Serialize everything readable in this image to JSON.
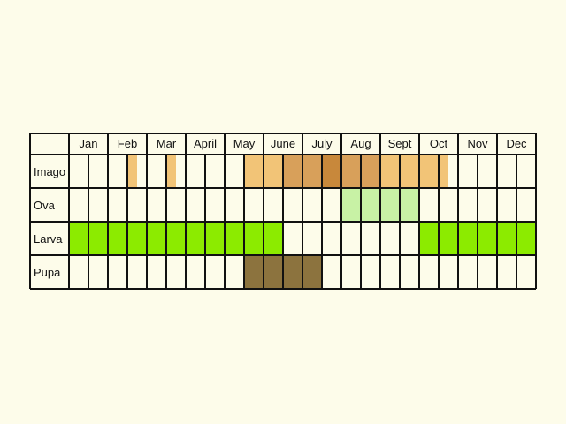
{
  "chart_data": {
    "type": "heatmap",
    "title": "",
    "xlabel": "",
    "ylabel": "",
    "months": [
      "Jan",
      "Feb",
      "Mar",
      "April",
      "May",
      "June",
      "July",
      "Aug",
      "Sept",
      "Oct",
      "Nov",
      "Dec"
    ],
    "periods_per_month": 2,
    "rows": [
      {
        "label": "Imago",
        "cells": [
          {
            "period": 3,
            "color": "#f2c477",
            "width": 0.5
          },
          {
            "period": 5,
            "color": "#f2c477",
            "width": 0.5
          },
          {
            "period": 9,
            "color": "#f2c477",
            "width": 1
          },
          {
            "period": 10,
            "color": "#f2c477",
            "width": 1
          },
          {
            "period": 11,
            "color": "#d8a05a",
            "width": 1
          },
          {
            "period": 12,
            "color": "#d8a05a",
            "width": 1
          },
          {
            "period": 13,
            "color": "#c8883b",
            "width": 1
          },
          {
            "period": 14,
            "color": "#d8a05a",
            "width": 1
          },
          {
            "period": 15,
            "color": "#d8a05a",
            "width": 1
          },
          {
            "period": 16,
            "color": "#f2c477",
            "width": 1
          },
          {
            "period": 17,
            "color": "#f2c477",
            "width": 1
          },
          {
            "period": 18,
            "color": "#f2c477",
            "width": 1
          },
          {
            "period": 19,
            "color": "#f2c477",
            "width": 0.5
          }
        ]
      },
      {
        "label": "Ova",
        "cells": [
          {
            "period": 14,
            "color": "#c8f2a5",
            "width": 1
          },
          {
            "period": 15,
            "color": "#c8f2a5",
            "width": 1
          },
          {
            "period": 16,
            "color": "#c8f2a5",
            "width": 1
          },
          {
            "period": 17,
            "color": "#c8f2a5",
            "width": 1
          }
        ]
      },
      {
        "label": "Larva",
        "cells": [
          {
            "period": 0,
            "color": "#8ceb00",
            "width": 1
          },
          {
            "period": 1,
            "color": "#8ceb00",
            "width": 1
          },
          {
            "period": 2,
            "color": "#8ceb00",
            "width": 1
          },
          {
            "period": 3,
            "color": "#8ceb00",
            "width": 1
          },
          {
            "period": 4,
            "color": "#8ceb00",
            "width": 1
          },
          {
            "period": 5,
            "color": "#8ceb00",
            "width": 1
          },
          {
            "period": 6,
            "color": "#8ceb00",
            "width": 1
          },
          {
            "period": 7,
            "color": "#8ceb00",
            "width": 1
          },
          {
            "period": 8,
            "color": "#8ceb00",
            "width": 1
          },
          {
            "period": 9,
            "color": "#8ceb00",
            "width": 1
          },
          {
            "period": 10,
            "color": "#8ceb00",
            "width": 1
          },
          {
            "period": 18,
            "color": "#8ceb00",
            "width": 1
          },
          {
            "period": 19,
            "color": "#8ceb00",
            "width": 1
          },
          {
            "period": 20,
            "color": "#8ceb00",
            "width": 1
          },
          {
            "period": 21,
            "color": "#8ceb00",
            "width": 1
          },
          {
            "period": 22,
            "color": "#8ceb00",
            "width": 1
          },
          {
            "period": 23,
            "color": "#8ceb00",
            "width": 1
          }
        ]
      },
      {
        "label": "Pupa",
        "cells": [
          {
            "period": 9,
            "color": "#8c733e",
            "width": 1
          },
          {
            "period": 10,
            "color": "#8c733e",
            "width": 1
          },
          {
            "period": 11,
            "color": "#8c733e",
            "width": 1
          },
          {
            "period": 12,
            "color": "#8c733e",
            "width": 1
          }
        ]
      }
    ],
    "grid": true,
    "legend": "none",
    "colors": {
      "background": "#fdfcea",
      "empty_cell": "#fdfcea",
      "grid_line": "#111111"
    }
  }
}
